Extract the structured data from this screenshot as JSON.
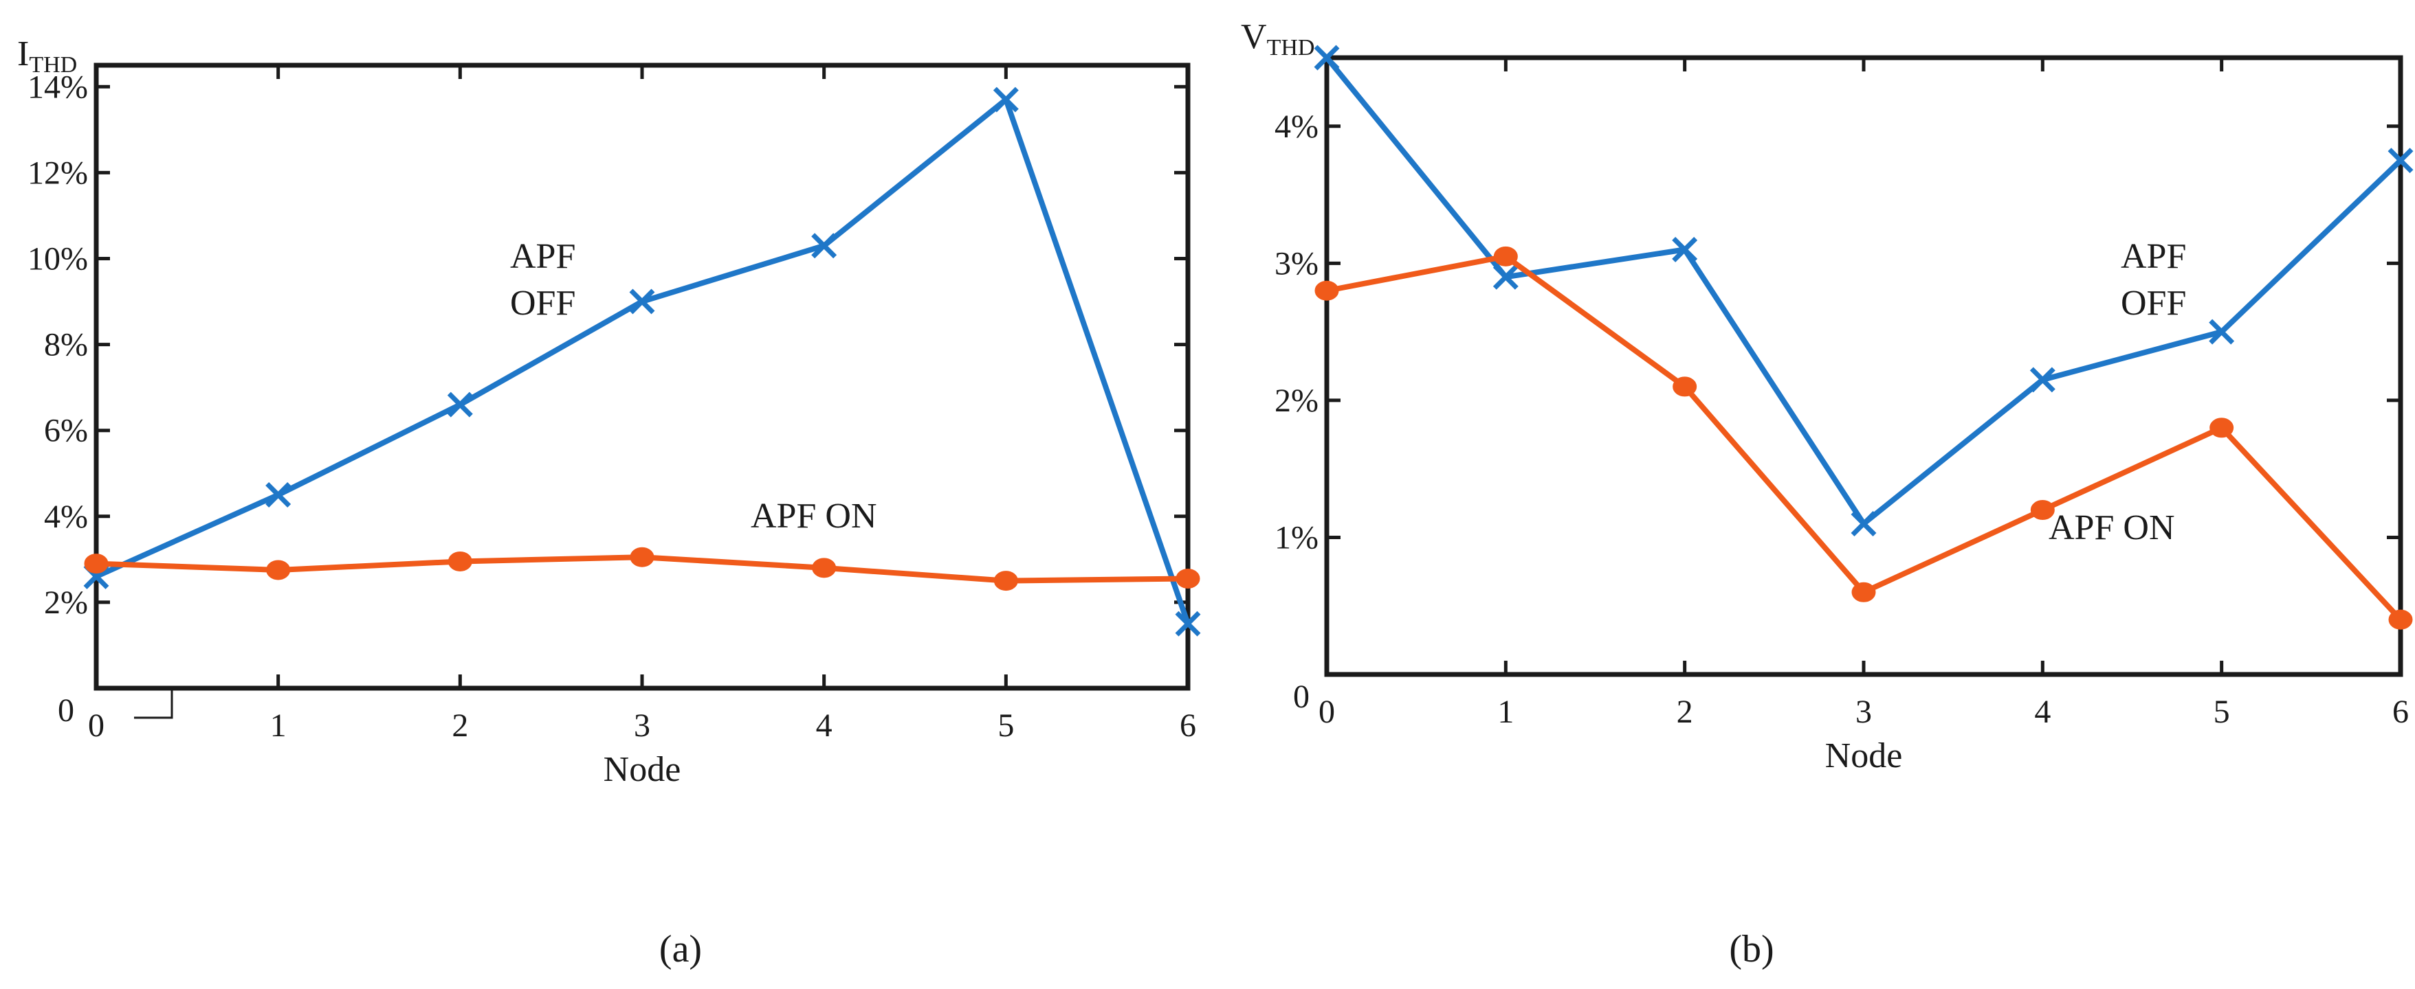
{
  "colors": {
    "apf_off": "#1f77c8",
    "apf_on": "#f05a1a",
    "axis": "#1a1a1a"
  },
  "chart_data": [
    {
      "type": "line",
      "panel_label": "(a)",
      "ylabel": "I",
      "ylabel_sub": "THD",
      "xlabel": "Node",
      "origin_label": "0",
      "x": [
        0,
        1,
        2,
        3,
        4,
        5,
        6
      ],
      "xticks": [
        "0",
        "1",
        "2",
        "3",
        "4",
        "5",
        "6"
      ],
      "ylim": [
        0,
        14.5
      ],
      "yticks": [
        2,
        4,
        6,
        8,
        10,
        12,
        14
      ],
      "ytick_labels": [
        "2%",
        "4%",
        "6%",
        "8%",
        "10%",
        "12%",
        "14%"
      ],
      "series": [
        {
          "name": "APF OFF",
          "annotation": [
            "APF",
            "OFF"
          ],
          "color": "#1f77c8",
          "marker": "x",
          "values": [
            2.6,
            4.5,
            6.6,
            9.0,
            10.3,
            13.7,
            1.5
          ]
        },
        {
          "name": "APF ON",
          "annotation": [
            "APF ON"
          ],
          "color": "#f05a1a",
          "marker": "o",
          "values": [
            2.9,
            2.75,
            2.95,
            3.05,
            2.8,
            2.5,
            2.55
          ]
        }
      ],
      "grid": false
    },
    {
      "type": "line",
      "panel_label": "(b)",
      "ylabel": "V",
      "ylabel_sub": "THD",
      "xlabel": "Node",
      "origin_label": "0",
      "x": [
        0,
        1,
        2,
        3,
        4,
        5,
        6
      ],
      "xticks": [
        "0",
        "1",
        "2",
        "3",
        "4",
        "5",
        "6"
      ],
      "ylim": [
        0,
        4.5
      ],
      "yticks": [
        1,
        2,
        3,
        4
      ],
      "ytick_labels": [
        "1%",
        "2%",
        "3%",
        "4%"
      ],
      "series": [
        {
          "name": "APF OFF",
          "annotation": [
            "APF",
            "OFF"
          ],
          "color": "#1f77c8",
          "marker": "x",
          "values": [
            4.5,
            2.9,
            3.1,
            1.1,
            2.15,
            2.5,
            3.75
          ]
        },
        {
          "name": "APF ON",
          "annotation": [
            "APF ON"
          ],
          "color": "#f05a1a",
          "marker": "o",
          "values": [
            2.8,
            3.05,
            2.1,
            0.6,
            1.2,
            1.8,
            0.4
          ]
        }
      ],
      "grid": false
    }
  ]
}
